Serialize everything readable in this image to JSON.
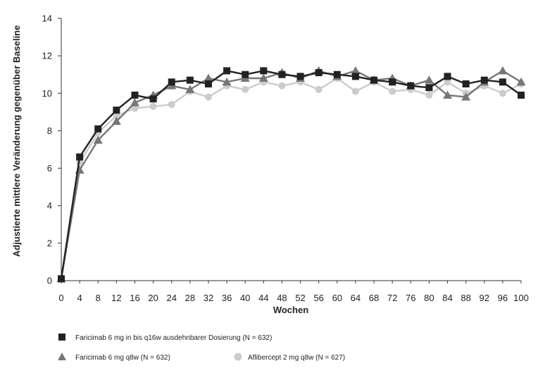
{
  "chart_data": {
    "type": "line",
    "title": "",
    "xlabel": "Wochen",
    "ylabel": "Adjustierte mittlere Veränderung gegenüber  Baseline",
    "xlim": [
      0,
      100
    ],
    "ylim": [
      0,
      14
    ],
    "x_ticks": [
      0,
      4,
      8,
      12,
      16,
      20,
      24,
      28,
      32,
      36,
      40,
      44,
      48,
      52,
      56,
      60,
      64,
      68,
      72,
      76,
      80,
      84,
      88,
      92,
      96,
      100
    ],
    "y_ticks": [
      0,
      2,
      4,
      6,
      8,
      10,
      12,
      14
    ],
    "grid": false,
    "legend_position": "bottom",
    "x": [
      0,
      4,
      8,
      12,
      16,
      20,
      24,
      28,
      32,
      36,
      40,
      44,
      48,
      52,
      56,
      60,
      64,
      68,
      72,
      76,
      80,
      84,
      88,
      92,
      96,
      100
    ],
    "series": [
      {
        "name": "Aflibercept 2 mg q8w (N = 627)",
        "marker": "circle",
        "color": "#cccccc",
        "values": [
          0.1,
          6.3,
          7.9,
          8.8,
          9.2,
          9.3,
          9.4,
          10.1,
          9.8,
          10.4,
          10.2,
          10.6,
          10.4,
          10.6,
          10.2,
          10.8,
          10.1,
          10.6,
          10.1,
          10.2,
          9.9,
          10.6,
          10.0,
          10.4,
          10.0,
          10.5
        ]
      },
      {
        "name": "Faricimab 6 mg q8w (N = 632)",
        "marker": "triangle",
        "color": "#777777",
        "values": [
          0.1,
          5.9,
          7.5,
          8.5,
          9.5,
          9.9,
          10.4,
          10.2,
          10.8,
          10.6,
          10.8,
          10.8,
          11.1,
          10.8,
          11.2,
          10.9,
          11.2,
          10.7,
          10.8,
          10.4,
          10.7,
          9.9,
          9.8,
          10.6,
          11.2,
          10.6
        ]
      },
      {
        "name": "Faricimab 6 mg in bis q16w ausdehnbarer Dosierung (N = 632)",
        "marker": "square",
        "color": "#222222",
        "values": [
          0.1,
          6.6,
          8.1,
          9.1,
          9.9,
          9.7,
          10.6,
          10.7,
          10.5,
          11.2,
          11.0,
          11.2,
          11.0,
          10.9,
          11.1,
          11.0,
          10.9,
          10.7,
          10.6,
          10.4,
          10.3,
          10.9,
          10.5,
          10.7,
          10.6,
          9.9
        ]
      }
    ]
  }
}
